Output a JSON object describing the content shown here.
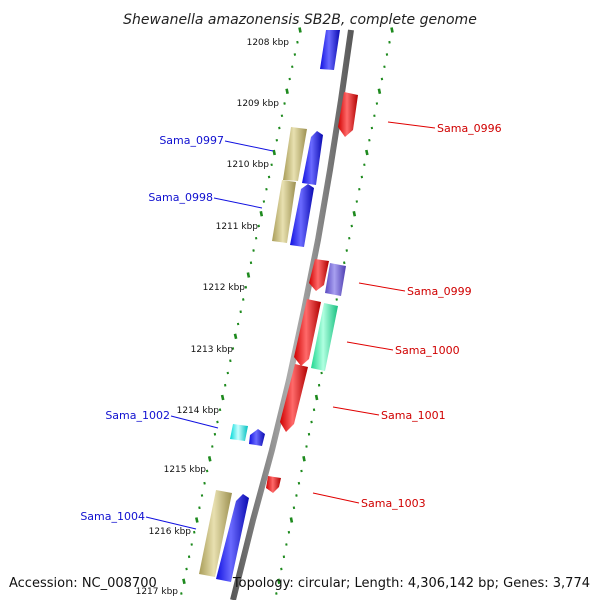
{
  "title": "Shewanella amazonensis SB2B, complete genome",
  "footer": {
    "accession": "Accession: NC_008700",
    "summary": "Topology: circular; Length: 4,306,142 bp; Genes: 3,774"
  },
  "colors": {
    "backbone": "#888888",
    "tick": "#1e8a1e",
    "blue": "#1010e0",
    "red": "#e00000",
    "olive": "#c8c080",
    "cyan": "#00ffff",
    "teal": "#30f0a0",
    "purple": "#7060d0",
    "white": "#ffffff"
  },
  "kbp_labels": [
    "1208 kbp",
    "1209 kbp",
    "1210 kbp",
    "1211 kbp",
    "1212 kbp",
    "1213 kbp",
    "1214 kbp",
    "1215 kbp",
    "1216 kbp",
    "1217 kbp"
  ],
  "gene_labels": {
    "left": [
      "Sama_0997",
      "Sama_0998",
      "Sama_1002",
      "Sama_1004"
    ],
    "right": [
      "Sama_0996",
      "Sama_0999",
      "Sama_1000",
      "Sama_1001",
      "Sama_1003"
    ]
  }
}
